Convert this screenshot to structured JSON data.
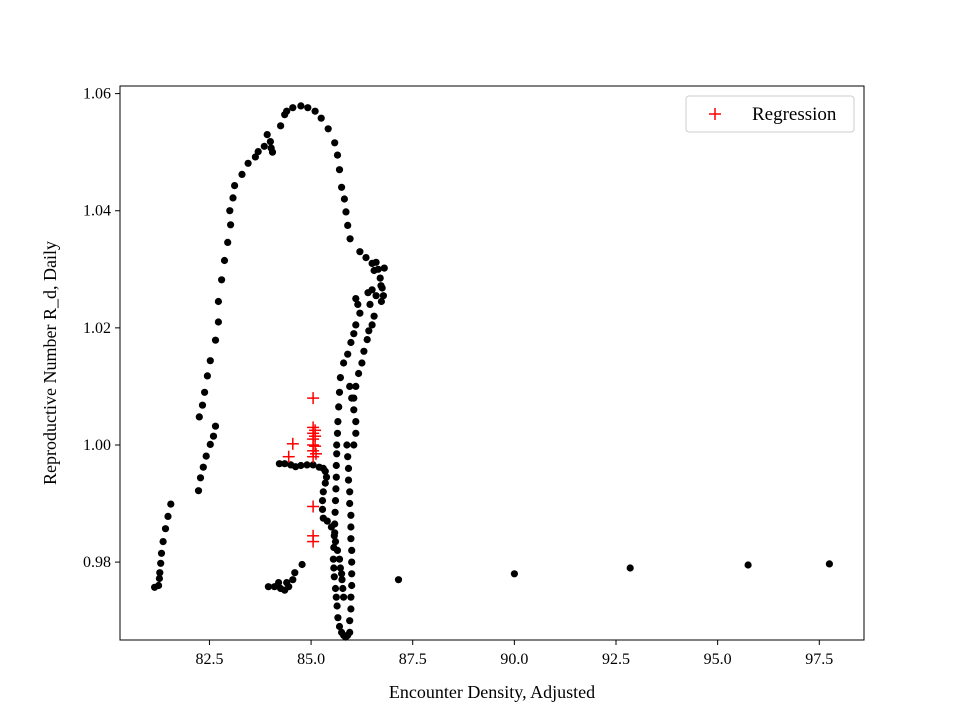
{
  "chart_data": {
    "type": "scatter",
    "xlabel": "Encounter Density, Adjusted",
    "ylabel": "Reproductive Number R_d, Daily",
    "xlim": [
      80.3,
      98.6
    ],
    "ylim": [
      0.9667,
      1.0613
    ],
    "xticks": [
      82.5,
      85.0,
      87.5,
      90.0,
      92.5,
      95.0,
      97.5
    ],
    "xtick_labels": [
      "82.5",
      "85.0",
      "87.5",
      "90.0",
      "92.5",
      "95.0",
      "97.5"
    ],
    "yticks": [
      0.98,
      1.0,
      1.02,
      1.04,
      1.06
    ],
    "ytick_labels": [
      "0.98",
      "1.00",
      "1.02",
      "1.04",
      "1.06"
    ],
    "grid": false,
    "legend": {
      "position": "top-right",
      "entries": [
        "Regression"
      ]
    },
    "series": [
      {
        "marker": "dot",
        "color": "#000000",
        "points": [
          [
            81.15,
            0.9757
          ],
          [
            81.25,
            0.976
          ],
          [
            81.27,
            0.9772
          ],
          [
            81.28,
            0.9782
          ],
          [
            81.3,
            0.9798
          ],
          [
            81.32,
            0.9815
          ],
          [
            81.36,
            0.9835
          ],
          [
            81.42,
            0.9857
          ],
          [
            81.48,
            0.9878
          ],
          [
            81.55,
            0.9899
          ],
          [
            82.23,
            0.9922
          ],
          [
            82.28,
            0.9944
          ],
          [
            82.35,
            0.9962
          ],
          [
            82.42,
            0.9981
          ],
          [
            82.52,
            1.0001
          ],
          [
            82.6,
            1.0015
          ],
          [
            82.65,
            1.0032
          ],
          [
            82.25,
            1.0048
          ],
          [
            82.33,
            1.0068
          ],
          [
            82.38,
            1.009
          ],
          [
            82.45,
            1.0118
          ],
          [
            82.52,
            1.0144
          ],
          [
            82.65,
            1.0179
          ],
          [
            82.72,
            1.021
          ],
          [
            82.72,
            1.0245
          ],
          [
            82.8,
            1.0282
          ],
          [
            82.87,
            1.0315
          ],
          [
            82.95,
            1.0346
          ],
          [
            83.02,
            1.0376
          ],
          [
            83.0,
            1.04
          ],
          [
            83.08,
            1.0422
          ],
          [
            83.12,
            1.0443
          ],
          [
            83.3,
            1.0462
          ],
          [
            83.45,
            1.0481
          ],
          [
            83.63,
            1.0492
          ],
          [
            83.7,
            1.0501
          ],
          [
            83.85,
            1.051
          ],
          [
            83.92,
            1.053
          ],
          [
            84.0,
            1.0518
          ],
          [
            84.02,
            1.0507
          ],
          [
            84.05,
            1.05
          ],
          [
            84.25,
            1.0545
          ],
          [
            84.35,
            1.0564
          ],
          [
            84.4,
            1.057
          ],
          [
            84.55,
            1.0576
          ],
          [
            84.75,
            1.0579
          ],
          [
            84.92,
            1.0576
          ],
          [
            85.1,
            1.057
          ],
          [
            85.25,
            1.0558
          ],
          [
            85.42,
            1.054
          ],
          [
            85.58,
            1.0516
          ],
          [
            85.65,
            1.0495
          ],
          [
            85.7,
            1.047
          ],
          [
            85.75,
            1.044
          ],
          [
            85.82,
            1.042
          ],
          [
            85.86,
            1.0398
          ],
          [
            85.9,
            1.0375
          ],
          [
            85.96,
            1.0352
          ],
          [
            86.2,
            1.033
          ],
          [
            86.35,
            1.032
          ],
          [
            86.5,
            1.031
          ],
          [
            86.55,
            1.0298
          ],
          [
            86.6,
            1.0312
          ],
          [
            86.65,
            1.03
          ],
          [
            86.7,
            1.0285
          ],
          [
            86.75,
            1.0268
          ],
          [
            86.78,
            1.0255
          ],
          [
            86.8,
            1.0302
          ],
          [
            86.72,
            1.0272
          ],
          [
            86.73,
            1.0245
          ],
          [
            86.6,
            1.0255
          ],
          [
            86.5,
            1.0265
          ],
          [
            86.4,
            1.026
          ],
          [
            86.45,
            1.024
          ],
          [
            86.55,
            1.022
          ],
          [
            86.5,
            1.0205
          ],
          [
            86.42,
            1.0195
          ],
          [
            86.38,
            1.018
          ],
          [
            86.3,
            1.016
          ],
          [
            86.25,
            1.014
          ],
          [
            86.17,
            1.0122
          ],
          [
            86.1,
            1.01
          ],
          [
            86.05,
            1.008
          ],
          [
            86.1,
            1.025
          ],
          [
            86.15,
            1.024
          ],
          [
            86.2,
            1.0225
          ],
          [
            86.1,
            1.0205
          ],
          [
            86.05,
            1.019
          ],
          [
            85.98,
            1.0175
          ],
          [
            85.9,
            1.0155
          ],
          [
            85.8,
            1.014
          ],
          [
            85.72,
            1.0115
          ],
          [
            85.7,
            1.009
          ],
          [
            85.68,
            1.0065
          ],
          [
            85.66,
            1.004
          ],
          [
            85.65,
            1.002
          ],
          [
            85.63,
            1.0
          ],
          [
            85.63,
            0.9985
          ],
          [
            85.62,
            0.9965
          ],
          [
            85.62,
            0.9945
          ],
          [
            85.61,
            0.9925
          ],
          [
            85.6,
            0.9905
          ],
          [
            85.59,
            0.9885
          ],
          [
            85.58,
            0.9865
          ],
          [
            85.57,
            0.9845
          ],
          [
            85.56,
            0.9825
          ],
          [
            85.55,
            0.9805
          ],
          [
            85.56,
            0.979
          ],
          [
            85.57,
            0.9775
          ],
          [
            85.6,
            0.9755
          ],
          [
            85.62,
            0.974
          ],
          [
            85.64,
            0.9725
          ],
          [
            85.66,
            0.9705
          ],
          [
            85.7,
            0.969
          ],
          [
            85.75,
            0.968
          ],
          [
            85.8,
            0.9675
          ],
          [
            85.85,
            0.9672
          ],
          [
            85.9,
            0.9675
          ],
          [
            85.95,
            0.968
          ],
          [
            85.95,
            0.97
          ],
          [
            85.98,
            0.972
          ],
          [
            85.98,
            0.974
          ],
          [
            86.0,
            0.976
          ],
          [
            86.0,
            0.978
          ],
          [
            86.0,
            0.98
          ],
          [
            86.0,
            0.982
          ],
          [
            85.98,
            0.984
          ],
          [
            85.98,
            0.986
          ],
          [
            85.98,
            0.988
          ],
          [
            85.95,
            0.99
          ],
          [
            85.95,
            0.992
          ],
          [
            85.92,
            0.994
          ],
          [
            85.92,
            0.996
          ],
          [
            85.9,
            0.998
          ],
          [
            85.88,
            1.0
          ],
          [
            86.05,
            1.0
          ],
          [
            86.1,
            1.002
          ],
          [
            86.1,
            1.004
          ],
          [
            86.05,
            1.006
          ],
          [
            86.0,
            1.008
          ],
          [
            85.95,
            1.01
          ],
          [
            84.22,
            0.9968
          ],
          [
            84.35,
            0.9968
          ],
          [
            84.5,
            0.9966
          ],
          [
            84.62,
            0.9963
          ],
          [
            84.75,
            0.9965
          ],
          [
            84.9,
            0.9966
          ],
          [
            85.05,
            0.9966
          ],
          [
            85.2,
            0.9962
          ],
          [
            85.3,
            0.996
          ],
          [
            85.35,
            0.9955
          ],
          [
            85.38,
            0.9945
          ],
          [
            85.35,
            0.9935
          ],
          [
            85.3,
            0.992
          ],
          [
            85.28,
            0.9905
          ],
          [
            85.28,
            0.989
          ],
          [
            85.3,
            0.9875
          ],
          [
            85.4,
            0.987
          ],
          [
            85.5,
            0.986
          ],
          [
            85.58,
            0.985
          ],
          [
            85.6,
            0.9835
          ],
          [
            85.65,
            0.982
          ],
          [
            85.7,
            0.9805
          ],
          [
            85.72,
            0.979
          ],
          [
            85.75,
            0.978
          ],
          [
            85.76,
            0.977
          ],
          [
            85.78,
            0.9755
          ],
          [
            85.8,
            0.974
          ],
          [
            83.95,
            0.9758
          ],
          [
            84.1,
            0.9758
          ],
          [
            84.25,
            0.9755
          ],
          [
            84.35,
            0.9752
          ],
          [
            84.45,
            0.9758
          ],
          [
            84.55,
            0.977
          ],
          [
            84.6,
            0.9782
          ],
          [
            84.78,
            0.9796
          ],
          [
            84.4,
            0.9765
          ],
          [
            84.2,
            0.9765
          ],
          [
            87.15,
            0.977
          ],
          [
            90.0,
            0.978
          ],
          [
            92.85,
            0.979
          ],
          [
            95.75,
            0.9795
          ],
          [
            97.75,
            0.9797
          ]
        ]
      },
      {
        "name": "Regression",
        "marker": "plus",
        "color": "#ff0000",
        "points": [
          [
            85.05,
            1.008
          ],
          [
            84.55,
            1.0002
          ],
          [
            84.45,
            0.998
          ],
          [
            85.05,
            1.003
          ],
          [
            85.05,
            1.002
          ],
          [
            85.05,
            1.001
          ],
          [
            85.05,
            1.0
          ],
          [
            85.05,
            0.999
          ],
          [
            85.05,
            0.998
          ],
          [
            85.1,
            1.0025
          ],
          [
            85.1,
            1.0015
          ],
          [
            85.1,
            0.9998
          ],
          [
            85.12,
            0.9985
          ],
          [
            85.05,
            0.9895
          ],
          [
            85.05,
            0.9845
          ],
          [
            85.05,
            0.9835
          ]
        ]
      }
    ]
  }
}
